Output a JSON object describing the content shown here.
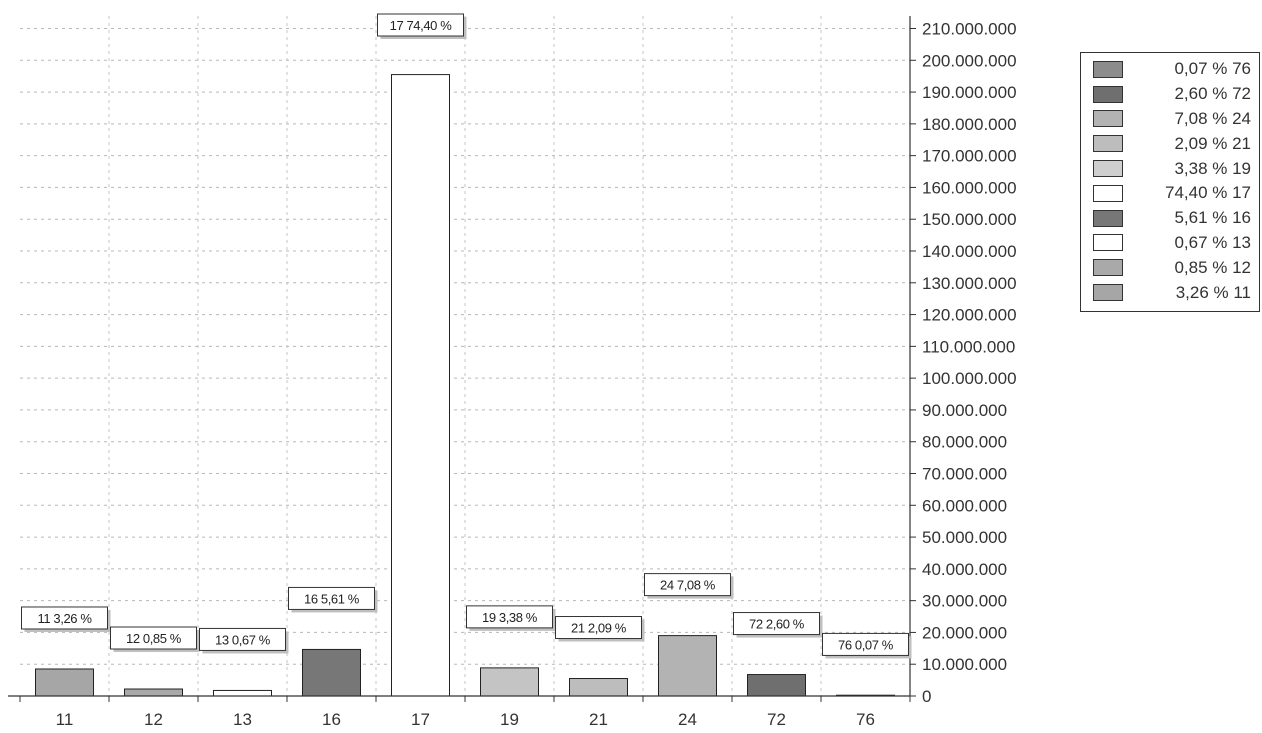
{
  "chart_data": {
    "type": "bar",
    "categories": [
      "11",
      "12",
      "13",
      "16",
      "17",
      "19",
      "21",
      "24",
      "72",
      "76"
    ],
    "series": [
      {
        "values": [
          8500000,
          2200000,
          1750000,
          14650000,
          195500000,
          8850000,
          5500000,
          19000000,
          6750000,
          180000
        ]
      }
    ],
    "percentages": [
      "3,26 %",
      "0,85 %",
      "0,67 %",
      "5,61 %",
      "74,40 %",
      "3,38 %",
      "2,09 %",
      "7,08 %",
      "2,60 %",
      "0,07 %"
    ],
    "data_labels": [
      "11 3,26 %",
      "12 0,85 %",
      "13 0,67 %",
      "16 5,61 %",
      "17 74,40 %",
      "19 3,38 %",
      "21 2,09 %",
      "24 7,08 %",
      "72 2,60 %",
      "76 0,07 %"
    ],
    "bar_colors": [
      "#a6a6a6",
      "#a9a9a9",
      "#ffffff",
      "#777777",
      "#ffffff",
      "#c4c4c4",
      "#bdbdbd",
      "#b3b3b3",
      "#6f6f6f",
      "#8c8c8c"
    ],
    "y_ticks": [
      "0",
      "10.000.000",
      "20.000.000",
      "30.000.000",
      "40.000.000",
      "50.000.000",
      "60.000.000",
      "70.000.000",
      "80.000.000",
      "90.000.000",
      "100.000.000",
      "110.000.000",
      "120.000.000",
      "130.000.000",
      "140.000.000",
      "150.000.000",
      "160.000.000",
      "170.000.000",
      "180.000.000",
      "190.000.000",
      "200.000.000",
      "210.000.000"
    ],
    "ylim": [
      0,
      210000000
    ],
    "y_axis_position": "right",
    "grid": true,
    "legend_position": "top-right",
    "legend": [
      {
        "label": "0,07 % 76",
        "color": "#8c8c8c"
      },
      {
        "label": "2,60 % 72",
        "color": "#6f6f6f"
      },
      {
        "label": "7,08 % 24",
        "color": "#b3b3b3"
      },
      {
        "label": "2,09 % 21",
        "color": "#bdbdbd"
      },
      {
        "label": "3,38 % 19",
        "color": "#cfcfcf"
      },
      {
        "label": "74,40 % 17",
        "color": "#ffffff"
      },
      {
        "label": "5,61 % 16",
        "color": "#777777"
      },
      {
        "label": "0,67 % 13",
        "color": "#ffffff"
      },
      {
        "label": "0,85 % 12",
        "color": "#a9a9a9"
      },
      {
        "label": "3,26 % 11",
        "color": "#a6a6a6"
      }
    ]
  }
}
